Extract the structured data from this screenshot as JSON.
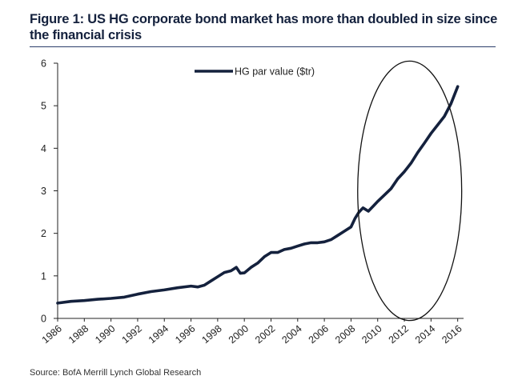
{
  "colors": {
    "series": "#14213d",
    "axis": "#222222",
    "title": "#14213d"
  },
  "chart_data": {
    "type": "line",
    "title": "Figure 1: US HG corporate bond market has more than doubled in size since the financial crisis",
    "xlabel": "",
    "ylabel": "",
    "source": "Source: BofA Merrill Lynch Global Research",
    "xlim": [
      1986,
      2016.2
    ],
    "ylim": [
      0,
      6
    ],
    "x_ticks": [
      "1986",
      "1988",
      "1990",
      "1992",
      "1994",
      "1996",
      "1998",
      "2000",
      "2002",
      "2004",
      "2006",
      "2008",
      "2010",
      "2012",
      "2014",
      "2016"
    ],
    "y_ticks": [
      "0",
      "1",
      "2",
      "3",
      "4",
      "5",
      "6"
    ],
    "grid": false,
    "legend": {
      "placement": "top-center"
    },
    "series": [
      {
        "name": "HG par value ($tr)",
        "x": [
          1986,
          1987,
          1988,
          1989,
          1990,
          1991,
          1992,
          1993,
          1994,
          1995,
          1996,
          1996.5,
          1997,
          1997.5,
          1998,
          1998.5,
          1999,
          1999.4,
          1999.7,
          2000,
          2000.5,
          2001,
          2001.5,
          2002,
          2002.5,
          2003,
          2003.5,
          2004,
          2004.5,
          2005,
          2005.5,
          2006,
          2006.5,
          2007,
          2007.5,
          2008,
          2008.3,
          2008.6,
          2008.9,
          2009.3,
          2009.7,
          2010,
          2010.5,
          2011,
          2011.5,
          2012,
          2012.5,
          2013,
          2013.5,
          2014,
          2014.5,
          2015,
          2015.5,
          2016
        ],
        "values": [
          0.36,
          0.4,
          0.42,
          0.45,
          0.47,
          0.5,
          0.57,
          0.63,
          0.67,
          0.72,
          0.76,
          0.74,
          0.78,
          0.88,
          0.98,
          1.08,
          1.12,
          1.2,
          1.06,
          1.07,
          1.2,
          1.3,
          1.45,
          1.55,
          1.55,
          1.62,
          1.65,
          1.7,
          1.75,
          1.78,
          1.78,
          1.8,
          1.85,
          1.95,
          2.05,
          2.15,
          2.35,
          2.5,
          2.6,
          2.52,
          2.65,
          2.75,
          2.9,
          3.05,
          3.28,
          3.45,
          3.65,
          3.9,
          4.12,
          4.35,
          4.55,
          4.75,
          5.05,
          5.45
        ]
      }
    ],
    "annotations": [
      {
        "type": "ellipse",
        "label": "",
        "x_center": 2012.4,
        "y_center": 3.0,
        "x_radius": 3.9,
        "y_radius": 3.05
      }
    ]
  }
}
